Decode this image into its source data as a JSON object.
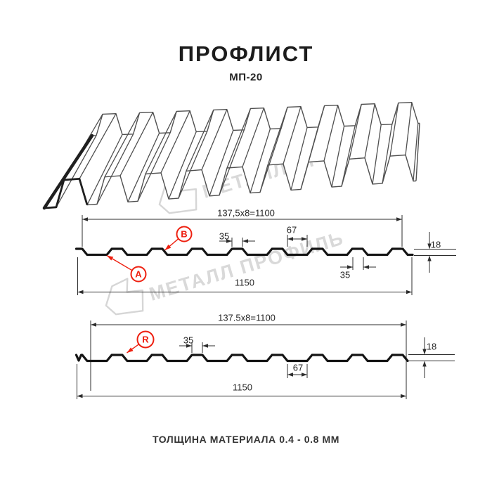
{
  "title": "ПРОФЛИСТ",
  "subtitle": "МП-20",
  "footer_note": "ТОЛЩИНА МАТЕРИАЛА 0.4 - 0.8 ММ",
  "watermark": {
    "brand": "МЕТАЛЛ ПРОФИЛЬ"
  },
  "colors": {
    "accent_red": "#ee2010",
    "line_dark": "#141414",
    "dim_line": "#2d2d2d",
    "watermark_gray": "#d9d9d9",
    "sheet_outline": "#4f4f4f"
  },
  "sections": [
    {
      "id": "profile-top",
      "module_label": "137,5x8=1100",
      "crest_width_label": "35",
      "valley_width_label": "67",
      "height_label": "18",
      "bottom_crest_label": "35",
      "total_width_label": "1150",
      "point_labels": [
        "A",
        "B"
      ]
    },
    {
      "id": "profile-bottom",
      "module_label": "137.5x8=1100",
      "crest_width_label": "35",
      "valley_width_label": "67",
      "height_label": "18",
      "total_width_label": "1150",
      "point_labels": [
        "R"
      ]
    }
  ]
}
